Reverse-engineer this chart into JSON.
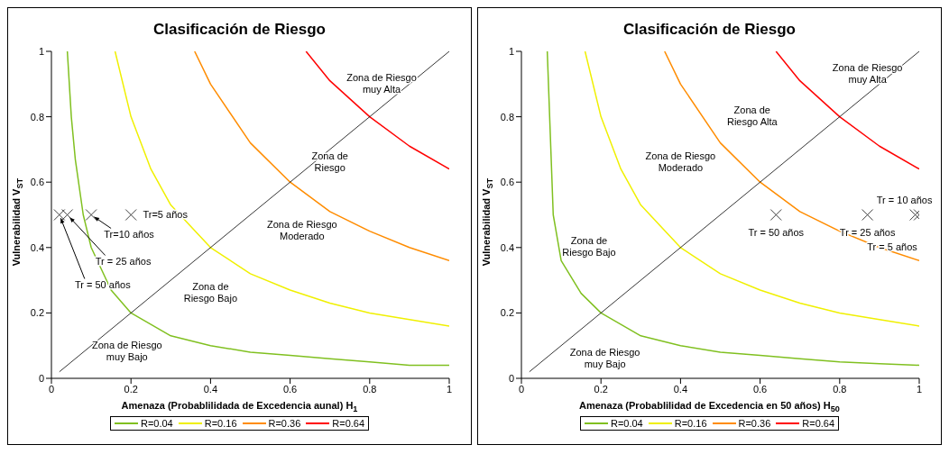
{
  "chart_data": [
    {
      "type": "line",
      "title": "Clasificación de Riesgo",
      "xlabel": "Amenaza (Probablilidada de Excedencia aunal) H$_{1}$",
      "ylabel": "Vulnerabilidad  V$_{ST}$",
      "xlim": [
        0,
        1
      ],
      "ylim": [
        0,
        1
      ],
      "xticks": [
        0,
        0.2,
        0.4,
        0.6,
        0.8,
        1
      ],
      "yticks": [
        0,
        0.2,
        0.4,
        0.6,
        0.8,
        1
      ],
      "grid": false,
      "legend": "bottom",
      "marker": "none",
      "line_style": "solid",
      "series": [
        {
          "name": "R=0.04",
          "color": "#80c020",
          "x": [
            0.04,
            0.05,
            0.06,
            0.08,
            0.1,
            0.15,
            0.2,
            0.3,
            0.4,
            0.5,
            0.6,
            0.7,
            0.8,
            0.9,
            1
          ],
          "values": [
            1,
            0.8,
            0.67,
            0.5,
            0.4,
            0.27,
            0.2,
            0.13,
            0.1,
            0.08,
            0.07,
            0.06,
            0.05,
            0.04,
            0.04
          ]
        },
        {
          "name": "R=0.16",
          "color": "#f0f000",
          "x": [
            0.16,
            0.2,
            0.25,
            0.3,
            0.4,
            0.5,
            0.6,
            0.7,
            0.8,
            0.9,
            1
          ],
          "values": [
            1,
            0.8,
            0.64,
            0.53,
            0.4,
            0.32,
            0.27,
            0.23,
            0.2,
            0.18,
            0.16
          ]
        },
        {
          "name": "R=0.36",
          "color": "#ff8c00",
          "x": [
            0.36,
            0.4,
            0.5,
            0.6,
            0.7,
            0.8,
            0.9,
            1
          ],
          "values": [
            1,
            0.9,
            0.72,
            0.6,
            0.51,
            0.45,
            0.4,
            0.36
          ]
        },
        {
          "name": "R=0.64",
          "color": "#ff0000",
          "x": [
            0.64,
            0.7,
            0.8,
            0.9,
            1
          ],
          "values": [
            1,
            0.91,
            0.8,
            0.71,
            0.64
          ]
        },
        {
          "type": "line",
          "color": "#000000",
          "x": [
            0.02,
            1
          ],
          "values": [
            0.02,
            1
          ]
        },
        {
          "type": "scatter",
          "marker": "cross",
          "color": "#404040",
          "x": [
            0.02,
            0.04,
            0.1,
            0.2
          ],
          "values": [
            0.5,
            0.5,
            0.5,
            0.5
          ]
        }
      ],
      "annotations": [
        {
          "text": "Tr = 50 años",
          "x": 0.02,
          "y": 0.5
        },
        {
          "text": "Tr = 25 años",
          "x": 0.04,
          "y": 0.5
        },
        {
          "text": "Tr=10 años",
          "x": 0.1,
          "y": 0.5
        },
        {
          "text": "Tr=5 años",
          "x": 0.2,
          "y": 0.5
        },
        "Zona de Riesgo\nmuy Alta",
        "Zona de\nRiesgo",
        "Zona de Riesgo\nModerado",
        "Zona de\nRiesgo  Bajo",
        "Zona de Riesgo\nmuy Bajo"
      ]
    },
    {
      "type": "line",
      "title": "Clasificación de Riesgo",
      "xlabel": "Amenaza (Probablilidad de Excedencia en 50 años) H$_{50}$",
      "ylabel": "Vulnerabilidad  V$_{ST}$",
      "xlim": [
        0,
        1
      ],
      "ylim": [
        0,
        1
      ],
      "xticks": [
        0,
        0.2,
        0.4,
        0.6,
        0.8,
        1
      ],
      "yticks": [
        0,
        0.2,
        0.4,
        0.6,
        0.8,
        1
      ],
      "grid": false,
      "legend": "bottom",
      "marker": "none",
      "line_style": "solid",
      "series": [
        {
          "name": "R=0.04",
          "color": "#80c020",
          "x": [
            0.065,
            0.08,
            0.1,
            0.15,
            0.2,
            0.3,
            0.4,
            0.5,
            0.6,
            0.7,
            0.8,
            0.9,
            1
          ],
          "values": [
            1,
            0.5,
            0.36,
            0.26,
            0.2,
            0.13,
            0.1,
            0.08,
            0.07,
            0.06,
            0.05,
            0.045,
            0.04
          ]
        },
        {
          "name": "R=0.16",
          "color": "#f0f000",
          "x": [
            0.16,
            0.2,
            0.25,
            0.3,
            0.4,
            0.5,
            0.6,
            0.7,
            0.8,
            0.9,
            1
          ],
          "values": [
            1,
            0.8,
            0.64,
            0.53,
            0.4,
            0.32,
            0.27,
            0.23,
            0.2,
            0.18,
            0.16
          ]
        },
        {
          "name": "R=0.36",
          "color": "#ff8c00",
          "x": [
            0.36,
            0.4,
            0.5,
            0.6,
            0.7,
            0.8,
            0.9,
            1
          ],
          "values": [
            1,
            0.9,
            0.72,
            0.6,
            0.51,
            0.45,
            0.4,
            0.36
          ]
        },
        {
          "name": "R=0.64",
          "color": "#ff0000",
          "x": [
            0.64,
            0.7,
            0.8,
            0.9,
            1
          ],
          "values": [
            1,
            0.91,
            0.8,
            0.71,
            0.64
          ]
        },
        {
          "type": "line",
          "color": "#000000",
          "x": [
            0.02,
            1
          ],
          "values": [
            0.02,
            1
          ]
        },
        {
          "type": "scatter",
          "marker": "cross",
          "color": "#404040",
          "x": [
            0.64,
            0.87,
            0.99,
            1
          ],
          "values": [
            0.5,
            0.5,
            0.5,
            0.5
          ]
        }
      ],
      "annotations": [
        {
          "text": "Tr = 50 años",
          "x": 0.64,
          "y": 0.5
        },
        {
          "text": "Tr = 25 años",
          "x": 0.87,
          "y": 0.5
        },
        {
          "text": "Tr = 10 años",
          "x": 0.99,
          "y": 0.5
        },
        {
          "text": "Tr = 5 años",
          "x": 1,
          "y": 0.5
        },
        "Zona de Riesgo\nmuy Alta",
        "Zona de\nRiesgo Alta",
        "Zona de Riesgo\nModerado",
        "Zona de\nRiesgo  Bajo",
        "Zona de Riesgo\nmuy Bajo"
      ]
    }
  ]
}
